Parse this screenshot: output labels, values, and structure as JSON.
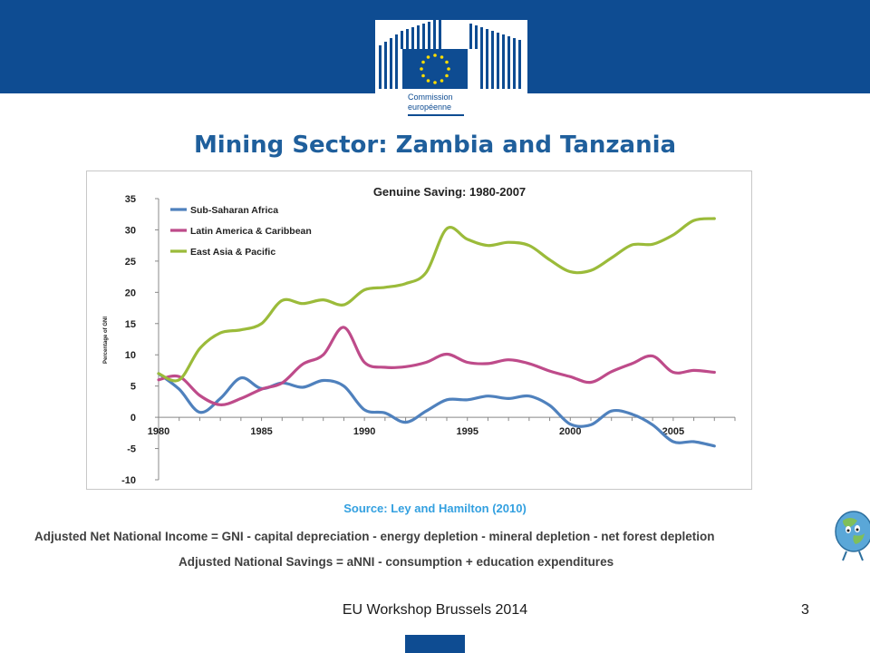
{
  "header": {
    "logo_line1": "Commission",
    "logo_line2": "européenne",
    "brand_blue": "#0e4c92"
  },
  "slide": {
    "title": "Mining Sector: Zambia and Tanzania",
    "title_color": "#1f5f9c"
  },
  "chart_data": {
    "type": "line",
    "title": "Genuine Saving: 1980-2007",
    "ylabel": "Percentage of GNI",
    "xlabel": "",
    "xlim": [
      1980,
      2008
    ],
    "ylim": [
      -10,
      35
    ],
    "x_ticks": [
      "1980",
      "1985",
      "1990",
      "1995",
      "2000",
      "2005"
    ],
    "y_ticks": [
      "35",
      "30",
      "25",
      "20",
      "15",
      "10",
      "5",
      "0",
      "-5",
      "-10"
    ],
    "grid": false,
    "legend_position": "top-left",
    "x": [
      1980,
      1981,
      1982,
      1983,
      1984,
      1985,
      1986,
      1987,
      1988,
      1989,
      1990,
      1991,
      1992,
      1993,
      1994,
      1995,
      1996,
      1997,
      1998,
      1999,
      2000,
      2001,
      2002,
      2003,
      2004,
      2005,
      2006,
      2007
    ],
    "series": [
      {
        "name": "Sub-Saharan Africa",
        "color": "#4f81bd",
        "values": [
          7.0,
          4.5,
          0.8,
          3.0,
          6.3,
          4.6,
          5.5,
          4.8,
          5.9,
          5.0,
          1.2,
          0.7,
          -0.8,
          1.0,
          2.8,
          2.8,
          3.4,
          3.0,
          3.4,
          1.9,
          -1.1,
          -1.2,
          1.0,
          0.5,
          -1.2,
          -3.9,
          -3.9,
          -4.6
        ]
      },
      {
        "name": "Latin America & Caribbean",
        "color": "#be4b8a",
        "values": [
          6.0,
          6.5,
          3.5,
          2.0,
          3.0,
          4.5,
          5.5,
          8.5,
          10.0,
          14.4,
          8.8,
          8.0,
          8.1,
          8.8,
          10.1,
          8.8,
          8.6,
          9.2,
          8.6,
          7.4,
          6.5,
          5.6,
          7.3,
          8.6,
          9.8,
          7.2,
          7.5,
          7.2
        ]
      },
      {
        "name": "East Asia & Pacific",
        "color": "#9bbb3a",
        "values": [
          7.0,
          6.0,
          11.0,
          13.5,
          14.0,
          15.0,
          18.7,
          18.2,
          18.8,
          18.0,
          20.4,
          20.8,
          21.4,
          23.2,
          30.2,
          28.5,
          27.5,
          28.0,
          27.5,
          25.2,
          23.3,
          23.5,
          25.5,
          27.6,
          27.7,
          29.2,
          31.5,
          31.8
        ]
      }
    ]
  },
  "notes": {
    "source": "Source: Ley and Hamilton (2010)",
    "formula1": "Adjusted Net National Income = GNI - capital depreciation - energy depletion - mineral depletion - net forest depletion",
    "formula2": "Adjusted National Savings = aNNI - consumption + education expenditures"
  },
  "footer": {
    "text": "EU Workshop Brussels 2014",
    "page_number": "3"
  }
}
